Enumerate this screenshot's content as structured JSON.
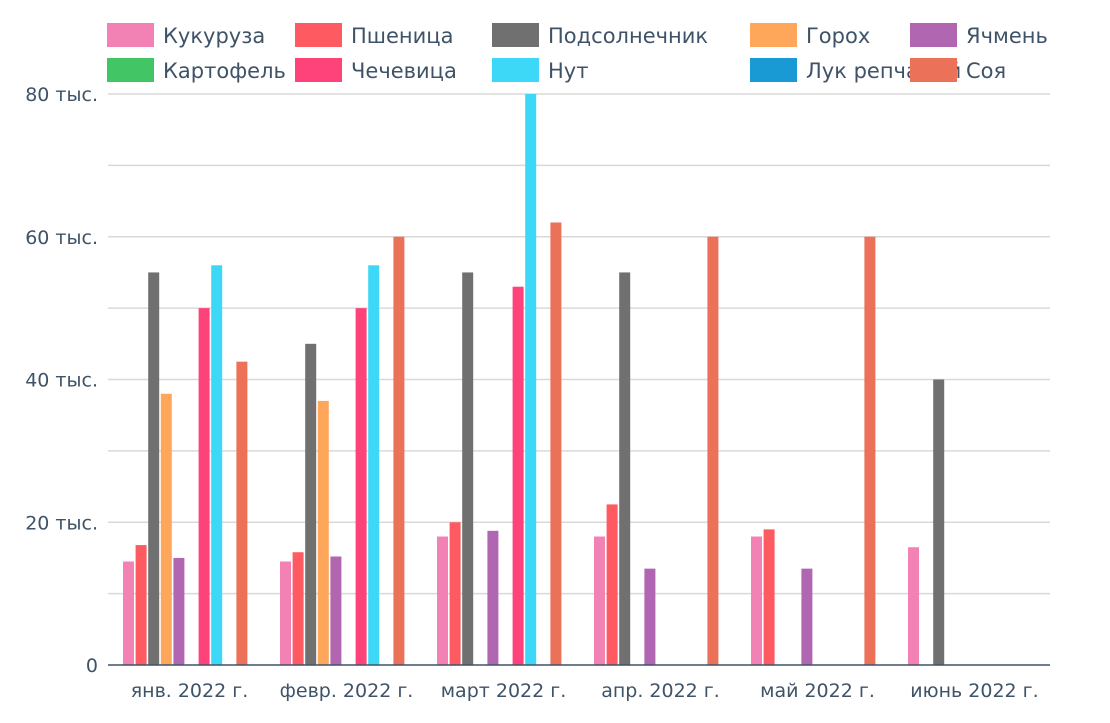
{
  "chart_data": {
    "type": "bar",
    "title": "",
    "xlabel": "",
    "ylabel": "",
    "ylim": [
      0,
      80000
    ],
    "y_ticks": [
      {
        "value": 0,
        "label": "0"
      },
      {
        "value": 20000,
        "label": "20 тыс."
      },
      {
        "value": 40000,
        "label": "40 тыс."
      },
      {
        "value": 60000,
        "label": "60 тыс."
      },
      {
        "value": 80000,
        "label": "80 тыс."
      }
    ],
    "grid": true,
    "legend_position": "top",
    "categories": [
      "янв. 2022 г.",
      "февр. 2022 г.",
      "март 2022 г.",
      "апр. 2022 г.",
      "май 2022 г.",
      "июнь 2022 г."
    ],
    "series": [
      {
        "name": "Кукуруза",
        "color": "#f282b4",
        "values": [
          14500,
          14500,
          18000,
          18000,
          18000,
          16500
        ]
      },
      {
        "name": "Пшеница",
        "color": "#fd5a62",
        "values": [
          16800,
          15800,
          20000,
          22500,
          19000,
          null
        ]
      },
      {
        "name": "Подсолнечник",
        "color": "#707070",
        "values": [
          55000,
          45000,
          55000,
          55000,
          null,
          40000
        ]
      },
      {
        "name": "Горох",
        "color": "#fea75b",
        "values": [
          38000,
          37000,
          null,
          null,
          null,
          null
        ]
      },
      {
        "name": "Ячмень",
        "color": "#b166b2",
        "values": [
          15000,
          15200,
          18800,
          13500,
          13500,
          null
        ]
      },
      {
        "name": "Картофель",
        "color": "#42c665",
        "values": [
          null,
          null,
          null,
          null,
          null,
          null
        ]
      },
      {
        "name": "Чечевица",
        "color": "#fd437a",
        "values": [
          50000,
          50000,
          53000,
          null,
          null,
          null
        ]
      },
      {
        "name": "Нут",
        "color": "#3dd7f7",
        "values": [
          56000,
          56000,
          80000,
          null,
          null,
          null
        ]
      },
      {
        "name": "Лук репчатый",
        "color": "#1a9ad5",
        "values": [
          null,
          null,
          null,
          null,
          null,
          null
        ]
      },
      {
        "name": "Соя",
        "color": "#eb7159",
        "values": [
          42500,
          60000,
          62000,
          60000,
          60000,
          null
        ]
      }
    ]
  }
}
